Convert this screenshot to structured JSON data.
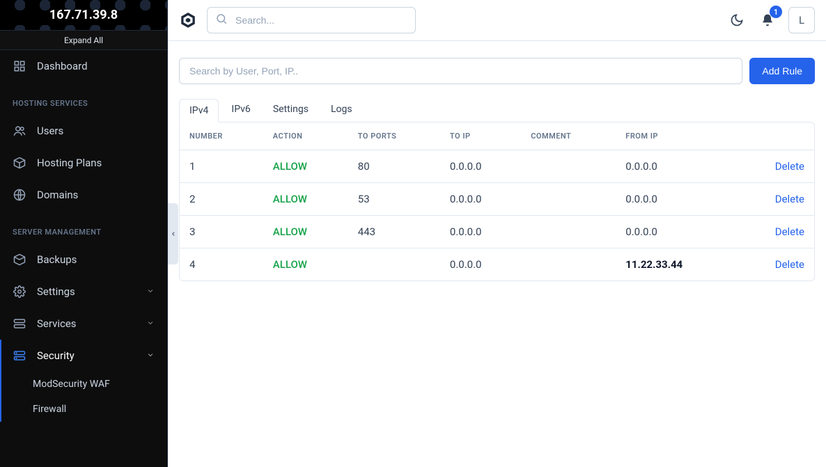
{
  "sidebar": {
    "ip": "167.71.39.8",
    "expand_label": "Expand All",
    "dashboard": "Dashboard",
    "section_hosting": "HOSTING SERVICES",
    "users": "Users",
    "hosting_plans": "Hosting Plans",
    "domains": "Domains",
    "section_server": "SERVER MANAGEMENT",
    "backups": "Backups",
    "settings": "Settings",
    "services": "Services",
    "security": "Security",
    "sub_modsecurity": "ModSecurity WAF",
    "sub_firewall": "Firewall"
  },
  "topbar": {
    "search_placeholder": "Search...",
    "notification_count": "1",
    "avatar_initial": "L"
  },
  "content": {
    "filter_placeholder": "Search by User, Port, IP..",
    "add_rule_label": "Add Rule",
    "tabs": {
      "ipv4": "IPv4",
      "ipv6": "IPv6",
      "settings": "Settings",
      "logs": "Logs"
    },
    "columns": {
      "number": "NUMBER",
      "action": "ACTION",
      "to_ports": "TO PORTS",
      "to_ip": "TO IP",
      "comment": "COMMENT",
      "from_ip": "FROM IP"
    },
    "delete_label": "Delete",
    "rows": [
      {
        "number": "1",
        "action": "ALLOW",
        "to_ports": "80",
        "to_ip": "0.0.0.0",
        "comment": "",
        "from_ip": "0.0.0.0",
        "from_ip_bold": false
      },
      {
        "number": "2",
        "action": "ALLOW",
        "to_ports": "53",
        "to_ip": "0.0.0.0",
        "comment": "",
        "from_ip": "0.0.0.0",
        "from_ip_bold": false
      },
      {
        "number": "3",
        "action": "ALLOW",
        "to_ports": "443",
        "to_ip": "0.0.0.0",
        "comment": "",
        "from_ip": "0.0.0.0",
        "from_ip_bold": false
      },
      {
        "number": "4",
        "action": "ALLOW",
        "to_ports": "",
        "to_ip": "0.0.0.0",
        "comment": "",
        "from_ip": "11.22.33.44",
        "from_ip_bold": true
      }
    ]
  },
  "colors": {
    "primary": "#2563eb",
    "allow": "#16a34a",
    "sidebar_bg": "#0d0d0d",
    "border": "#e2e8f0"
  }
}
